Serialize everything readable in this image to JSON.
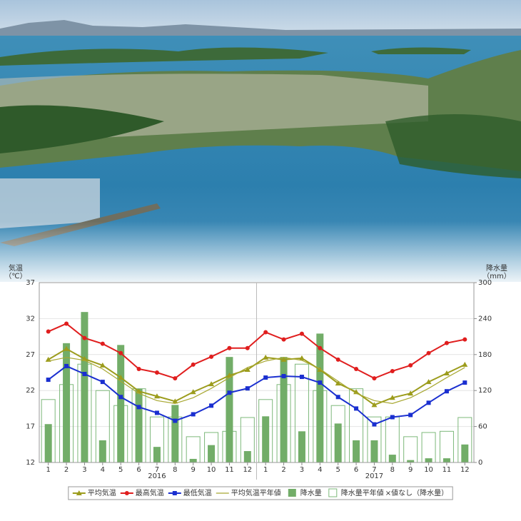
{
  "chart_data": {
    "type": "climate-combo",
    "y_label": [
      "気温",
      "（℃）"
    ],
    "y2_label": [
      "降水量",
      "（mm）"
    ],
    "categories": [
      "1",
      "2",
      "3",
      "4",
      "5",
      "6",
      "7",
      "8",
      "9",
      "10",
      "11",
      "12",
      "1",
      "2",
      "3",
      "4",
      "5",
      "6",
      "7",
      "8",
      "9",
      "10",
      "11",
      "12"
    ],
    "year_labels": [
      {
        "year": "2016",
        "index": 6
      },
      {
        "year": "2017",
        "index": 18
      }
    ],
    "ylim": [
      12,
      37
    ],
    "yticks": [
      12,
      17,
      22,
      27,
      32,
      37
    ],
    "y2lim": [
      0,
      300
    ],
    "y2ticks": [
      0,
      60,
      120,
      180,
      240,
      300
    ],
    "grid": true,
    "series": [
      {
        "name": "平均気温",
        "color": "#9c9c1c",
        "kind": "line",
        "marker": "triangle",
        "values": [
          26.3,
          27.8,
          26.4,
          25.5,
          23.8,
          21.9,
          21.2,
          20.5,
          21.8,
          22.9,
          24.1,
          24.9,
          26.6,
          26.3,
          26.5,
          24.9,
          23.0,
          21.8,
          20.0,
          21.0,
          21.6,
          23.2,
          24.4,
          25.6
        ]
      },
      {
        "name": "最高気温",
        "color": "#e01e1e",
        "kind": "line",
        "marker": "circle",
        "values": [
          30.2,
          31.3,
          29.3,
          28.5,
          27.2,
          25.0,
          24.5,
          23.7,
          25.6,
          26.7,
          27.9,
          27.9,
          30.1,
          29.1,
          29.9,
          27.9,
          26.3,
          25.0,
          23.7,
          24.7,
          25.5,
          27.2,
          28.6,
          29.1
        ]
      },
      {
        "name": "最低気温",
        "color": "#1a2fd0",
        "kind": "line",
        "marker": "square",
        "values": [
          23.5,
          25.4,
          24.3,
          23.2,
          21.1,
          19.7,
          18.9,
          17.8,
          18.7,
          19.9,
          21.7,
          22.3,
          23.8,
          24.0,
          23.9,
          23.1,
          21.1,
          19.5,
          17.3,
          18.3,
          18.6,
          20.3,
          21.9,
          23.1
        ]
      },
      {
        "name": "平均気温平年値",
        "color": "#a8a832",
        "kind": "line",
        "marker": "none",
        "values": [
          26.1,
          26.6,
          26.2,
          25.0,
          23.3,
          21.6,
          20.6,
          20.2,
          21.0,
          22.3,
          23.8,
          25.2,
          26.1,
          26.6,
          26.2,
          25.0,
          23.3,
          21.6,
          20.6,
          20.2,
          21.0,
          22.3,
          23.8,
          25.2
        ]
      },
      {
        "name": "降水量",
        "color": "#72ad68",
        "kind": "bar",
        "axis": "y2",
        "values": [
          64,
          199,
          251,
          37,
          196,
          123,
          26,
          96,
          6,
          29,
          176,
          19,
          77,
          176,
          52,
          215,
          65,
          37,
          37,
          13,
          4,
          7,
          7,
          30
        ]
      },
      {
        "name": "降水量平年値",
        "color": "#7db87a",
        "kind": "hollow-bar",
        "axis": "y2",
        "values": [
          105,
          130,
          164,
          120,
          95,
          123,
          76,
          76,
          43,
          50,
          52,
          75,
          105,
          130,
          164,
          120,
          95,
          123,
          76,
          76,
          43,
          50,
          52,
          75
        ]
      }
    ],
    "missing_note": "×値なし（降水量）"
  }
}
